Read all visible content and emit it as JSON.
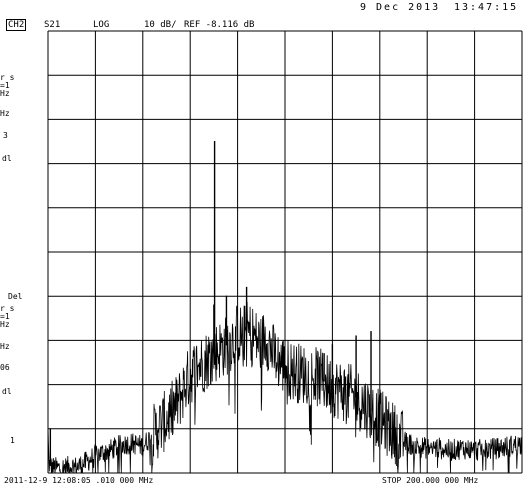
{
  "header": {
    "date": "9 Dec 2013",
    "time": "13:47:15",
    "channel": "CH2",
    "parameter": "S21",
    "format": "LOG",
    "scale": "10 dB/",
    "reference": "REF -8.116 dB"
  },
  "footer": {
    "left": "2011-12-9 12:08:05 .010 000 MHz",
    "stop": "STOP 200.000 000 MHz"
  },
  "side_labels": {
    "a1": "r s",
    "a2": "=1",
    "a3": "Hz",
    "a4": "Hz",
    "a5": "3",
    "a6": "dl",
    "b1": "Del",
    "b2": "r s",
    "b3": "=1",
    "b4": "Hz",
    "b5": "Hz",
    "b6": "06",
    "b7": "dl",
    "b8": "1"
  },
  "colors": {
    "background": "#ffffff",
    "trace": "#000000",
    "grid": "#000000"
  },
  "chart_data": {
    "type": "line",
    "xunit": "MHz",
    "yunit": "dB",
    "xlim": [
      0.01,
      200
    ],
    "ylim": [
      -108.116,
      -8.116
    ],
    "grid": true,
    "grid_divisions": {
      "x": 10,
      "y": 10
    },
    "y_per_div": 10,
    "reference_db": -8.116,
    "series": [
      {
        "x": [
          0.01,
          0.4,
          1,
          2,
          4,
          6,
          8,
          10,
          12,
          15,
          18,
          20,
          23,
          26,
          30,
          33,
          36,
          40,
          45,
          50,
          55,
          58,
          60,
          63,
          66,
          70,
          73,
          76,
          80,
          82,
          84,
          86,
          88,
          90,
          92,
          94,
          96,
          98,
          100,
          103,
          106,
          110,
          114,
          118,
          122,
          126,
          130,
          134,
          138,
          142,
          146,
          150,
          155,
          160,
          165,
          170,
          175,
          180,
          185,
          190,
          195,
          200
        ],
        "y": [
          -98,
          -106,
          -106.5,
          -106.8,
          -107,
          -107,
          -106.8,
          -106.5,
          -106.8,
          -106,
          -105,
          -104,
          -103.5,
          -103,
          -102,
          -101.5,
          -101.5,
          -102,
          -99,
          -96,
          -92,
          -88,
          -86,
          -84,
          -83,
          -81,
          -80,
          -79,
          -76.5,
          -77,
          -76,
          -76.5,
          -78,
          -79,
          -77,
          -80,
          -82,
          -83,
          -84,
          -85,
          -85.5,
          -86,
          -86.5,
          -88,
          -89,
          -90,
          -91,
          -93,
          -95,
          -97,
          -99,
          -101,
          -102,
          -102.5,
          -102.5,
          -103,
          -102.5,
          -103,
          -102.8,
          -102.5,
          -102,
          -101.5
        ]
      }
    ],
    "spikes": [
      {
        "x": 70.3,
        "y": -33
      },
      {
        "x": 70.0,
        "y": -70
      },
      {
        "x": 75.3,
        "y": -68
      },
      {
        "x": 83.8,
        "y": -66
      },
      {
        "x": 120.0,
        "y": -79
      },
      {
        "x": 130.0,
        "y": -77
      },
      {
        "x": 136.3,
        "y": -76
      },
      {
        "x": 116.5,
        "y": -81
      },
      {
        "x": 46.5,
        "y": -99
      },
      {
        "x": 1.0,
        "y": -98
      }
    ]
  }
}
